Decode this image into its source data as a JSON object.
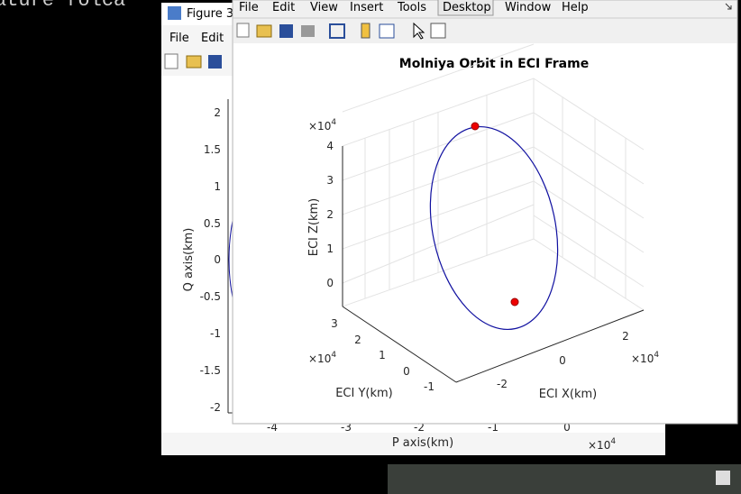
{
  "background_text": "ature folca",
  "back_window": {
    "title": "Figure 3",
    "menu": [
      "File",
      "Edit"
    ],
    "plot": {
      "y_ticks": [
        "2",
        "1.5",
        "1",
        "0.5",
        "0",
        "-0.5",
        "-1",
        "-1.5",
        "-2"
      ],
      "y_label": "Q axis(km)",
      "x_ticks": [
        "-4",
        "-3",
        "-2",
        "-1",
        "0"
      ],
      "x_label": "P axis(km)",
      "x_exponent": {
        "base": "×10",
        "power": "4"
      }
    }
  },
  "front_window": {
    "menu": [
      "File",
      "Edit",
      "View",
      "Insert",
      "Tools",
      "Desktop",
      "Window",
      "Help"
    ],
    "plot": {
      "title": "Molniya Orbit in ECI Frame",
      "z_ticks": [
        "4",
        "3",
        "2",
        "1",
        "0"
      ],
      "z_label": "ECI Z(km)",
      "z_exponent": {
        "base": "×10",
        "power": "4"
      },
      "y_ticks": [
        "3",
        "2",
        "1",
        "0",
        "-1"
      ],
      "y_label": "ECI Y(km)",
      "y_exponent": {
        "base": "×10",
        "power": "4"
      },
      "x_ticks": [
        "-2",
        "0",
        "2"
      ],
      "x_label": "ECI X(km)",
      "x_exponent": {
        "base": "×10",
        "power": "4"
      }
    }
  }
}
